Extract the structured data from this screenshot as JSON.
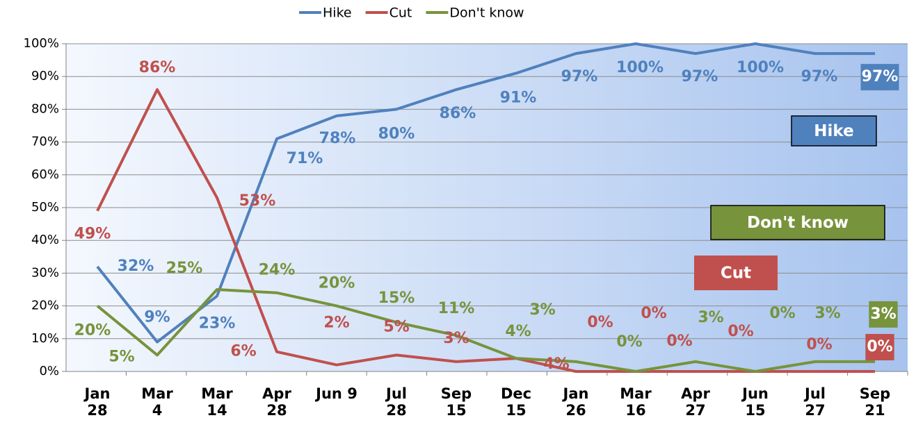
{
  "chart_data": {
    "type": "line",
    "categories": [
      "Jan 28",
      "Mar 4",
      "Mar 14",
      "Apr 28",
      "Jun 9",
      "Jul 28",
      "Sep 15",
      "Dec 15",
      "Jan 26",
      "Mar 16",
      "Apr 27",
      "Jun 15",
      "Jul 27",
      "Sep 21"
    ],
    "series": [
      {
        "name": "Hike",
        "color": "#4f81bd",
        "values": [
          32,
          9,
          23,
          71,
          78,
          80,
          86,
          91,
          97,
          100,
          97,
          100,
          97,
          97
        ],
        "value_labels": [
          "32%",
          "9%",
          "23%",
          "71%",
          "78%",
          "80%",
          "86%",
          "91%",
          "97%",
          "100%",
          "97%",
          "100%",
          "97%",
          "97%"
        ]
      },
      {
        "name": "Cut",
        "color": "#c0504d",
        "values": [
          49,
          86,
          53,
          6,
          2,
          5,
          3,
          4,
          0,
          0,
          0,
          0,
          0,
          0
        ],
        "value_labels": [
          "49%",
          "86%",
          "53%",
          "6%",
          "2%",
          "5%",
          "3%",
          "4%",
          "0%",
          "0%",
          "0%",
          "0%",
          "0%",
          "0%"
        ]
      },
      {
        "name": "Don't know",
        "color": "#77933c",
        "values": [
          20,
          5,
          25,
          24,
          20,
          15,
          11,
          4,
          3,
          0,
          3,
          0,
          3,
          3
        ],
        "value_labels": [
          "20%",
          "5%",
          "25%",
          "24%",
          "20%",
          "15%",
          "11%",
          "4%",
          "3%",
          "0%",
          "3%",
          "0%",
          "3%",
          "3%"
        ]
      }
    ],
    "ylim": [
      0,
      100
    ],
    "yticks": [
      {
        "value": 0,
        "label": "0%"
      },
      {
        "value": 10,
        "label": "10%"
      },
      {
        "value": 20,
        "label": "20%"
      },
      {
        "value": 30,
        "label": "30%"
      },
      {
        "value": 40,
        "label": "40%"
      },
      {
        "value": 50,
        "label": "50%"
      },
      {
        "value": 60,
        "label": "60%"
      },
      {
        "value": 70,
        "label": "70%"
      },
      {
        "value": 80,
        "label": "80%"
      },
      {
        "value": 90,
        "label": "90%"
      },
      {
        "value": 100,
        "label": "100%"
      }
    ],
    "grid": true,
    "legend": "top"
  }
}
